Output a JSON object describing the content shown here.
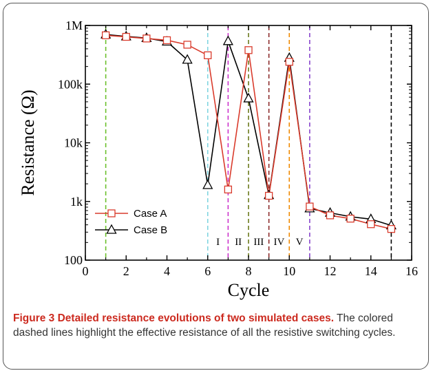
{
  "caption": {
    "title": "Figure 3 Detailed resistance evolutions of two simulated cases.",
    "text": "The colored dashed lines highlight the effective resistance of all the resistive switching cycles."
  },
  "chart_data": {
    "type": "line",
    "xlabel": "Cycle",
    "ylabel": "Resistance (Ω)",
    "xlim": [
      0,
      16
    ],
    "ylim": [
      100,
      1000000
    ],
    "yscale": "log",
    "xticks": [
      0,
      2,
      4,
      6,
      8,
      10,
      12,
      14,
      16
    ],
    "yticks": [
      {
        "value": 100,
        "label": "100"
      },
      {
        "value": 1000,
        "label": "1k"
      },
      {
        "value": 10000,
        "label": "10k"
      },
      {
        "value": 100000,
        "label": "100k"
      },
      {
        "value": 1000000,
        "label": "1M"
      }
    ],
    "x": [
      1,
      2,
      3,
      4,
      5,
      6,
      7,
      8,
      9,
      10,
      11,
      12,
      13,
      14,
      15
    ],
    "series": [
      {
        "name": "Case A",
        "color": "#d93a2b",
        "marker": "square",
        "values": [
          680000,
          640000,
          600000,
          560000,
          470000,
          310000,
          1600,
          380000,
          1250,
          240000,
          820,
          580,
          510,
          410,
          340
        ]
      },
      {
        "name": "Case B",
        "color": "#000000",
        "marker": "triangle",
        "values": [
          700000,
          650000,
          610000,
          530000,
          260000,
          1900,
          540000,
          57000,
          1280,
          280000,
          760,
          640,
          550,
          500,
          390
        ]
      }
    ],
    "vlines": [
      {
        "x": 1,
        "color": "#6abf2a"
      },
      {
        "x": 6,
        "color": "#7fd4e0"
      },
      {
        "x": 7,
        "color": "#cc33cc"
      },
      {
        "x": 8,
        "color": "#6b7a1c"
      },
      {
        "x": 9,
        "color": "#8b2a2a"
      },
      {
        "x": 10,
        "color": "#f08a00"
      },
      {
        "x": 11,
        "color": "#8844cc"
      },
      {
        "x": 15,
        "color": "#000000"
      }
    ],
    "regions": [
      {
        "label": "I",
        "x": 6.5
      },
      {
        "label": "II",
        "x": 7.5
      },
      {
        "label": "III",
        "x": 8.5
      },
      {
        "label": "IV",
        "x": 9.5
      },
      {
        "label": "V",
        "x": 10.5
      }
    ],
    "legend": {
      "position": "bottom-left"
    }
  }
}
